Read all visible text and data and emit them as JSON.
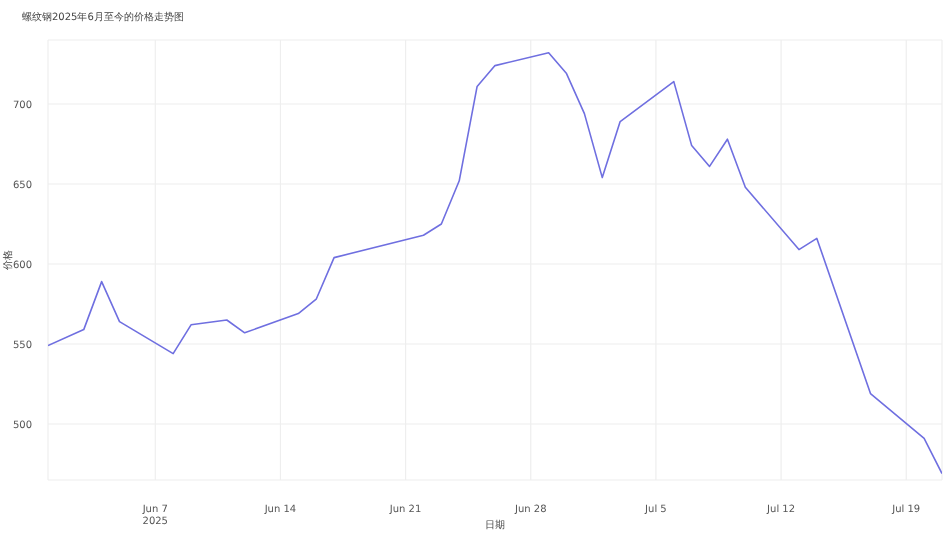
{
  "chart_data": {
    "type": "line",
    "title": "螺纹钢2025年6月至今的价格走势图",
    "xlabel": "日期",
    "ylabel": "价格",
    "x": [
      "2025-06-01",
      "2025-06-03",
      "2025-06-04",
      "2025-06-05",
      "2025-06-08",
      "2025-06-09",
      "2025-06-11",
      "2025-06-12",
      "2025-06-15",
      "2025-06-16",
      "2025-06-17",
      "2025-06-22",
      "2025-06-23",
      "2025-06-24",
      "2025-06-25",
      "2025-06-26",
      "2025-06-29",
      "2025-06-30",
      "2025-07-01",
      "2025-07-02",
      "2025-07-03",
      "2025-07-06",
      "2025-07-07",
      "2025-07-08",
      "2025-07-09",
      "2025-07-10",
      "2025-07-13",
      "2025-07-14",
      "2025-07-17",
      "2025-07-20",
      "2025-07-21"
    ],
    "series": [
      {
        "color": "#6f6fe0",
        "values": [
          549,
          559,
          589,
          564,
          544,
          562,
          565,
          557,
          569,
          578,
          604,
          618,
          625,
          652,
          711,
          724,
          732,
          719,
          694,
          654,
          689,
          714,
          674,
          661,
          678,
          648,
          609,
          616,
          519,
          491,
          469
        ]
      }
    ],
    "xlim": [
      "2025-06-01",
      "2025-07-21"
    ],
    "xticks": [
      {
        "value": "2025-06-07",
        "label": "Jun 7\n2025"
      },
      {
        "value": "2025-06-14",
        "label": "Jun 14"
      },
      {
        "value": "2025-06-21",
        "label": "Jun 21"
      },
      {
        "value": "2025-06-28",
        "label": "Jun 28"
      },
      {
        "value": "2025-07-05",
        "label": "Jul 5"
      },
      {
        "value": "2025-07-12",
        "label": "Jul 12"
      },
      {
        "value": "2025-07-19",
        "label": "Jul 19"
      }
    ],
    "ylim": [
      465,
      740
    ],
    "yticks": [
      500,
      550,
      600,
      650,
      700
    ],
    "grid": true,
    "line_style": "solid",
    "marker": "none"
  }
}
